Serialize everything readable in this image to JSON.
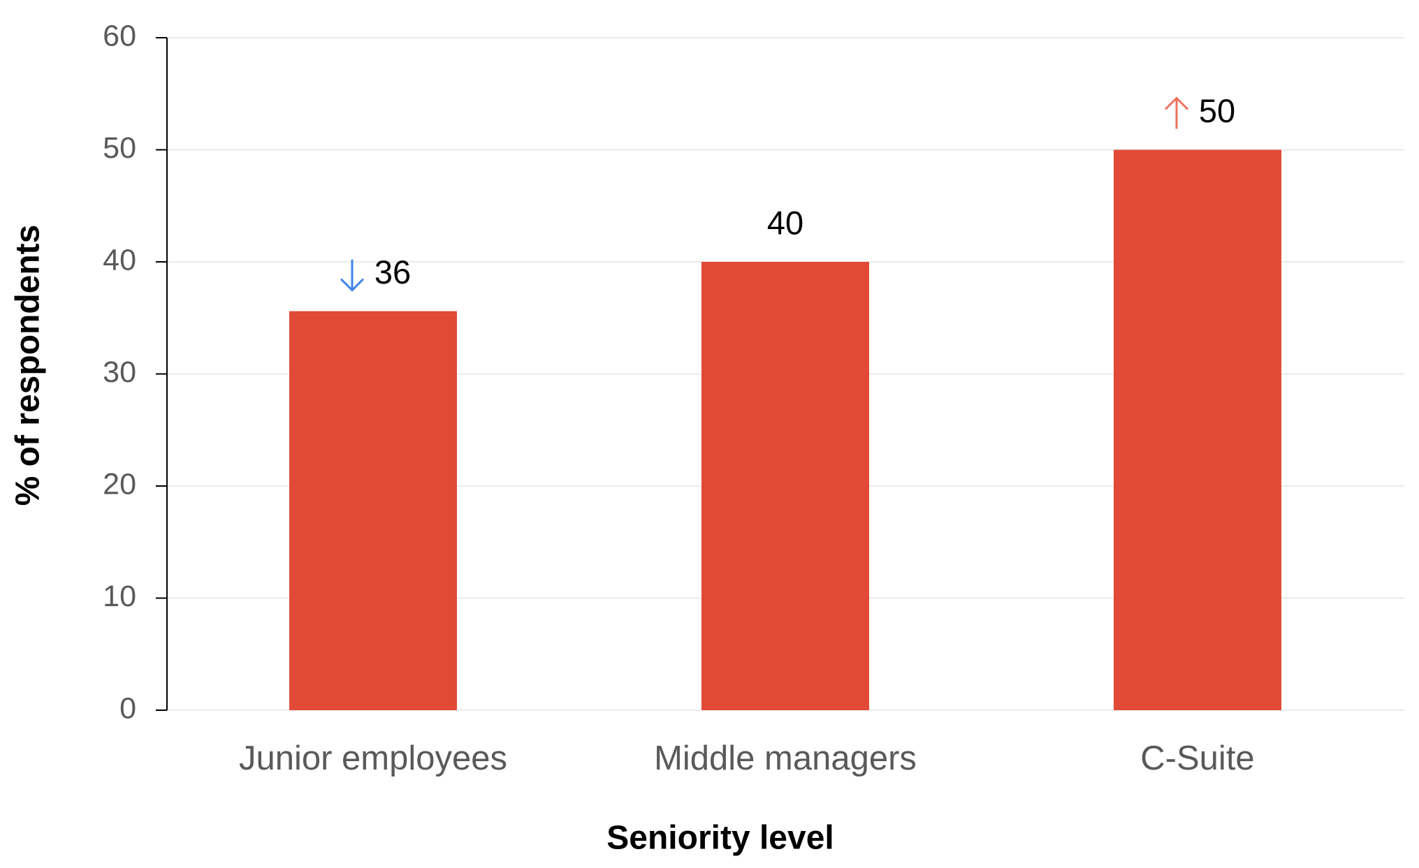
{
  "chart_data": {
    "type": "bar",
    "x_label": "Seniority level",
    "y_label": "% of respondents",
    "categories": [
      "Junior employees",
      "Middle managers",
      "C-Suite"
    ],
    "values": [
      35.6,
      40,
      50
    ],
    "value_labels": [
      "36",
      "40",
      "50"
    ],
    "color": "#e04a37",
    "ylim": [
      0,
      60
    ],
    "yticks": [
      0,
      10,
      20,
      30,
      40,
      50,
      60
    ],
    "grid": true
  }
}
